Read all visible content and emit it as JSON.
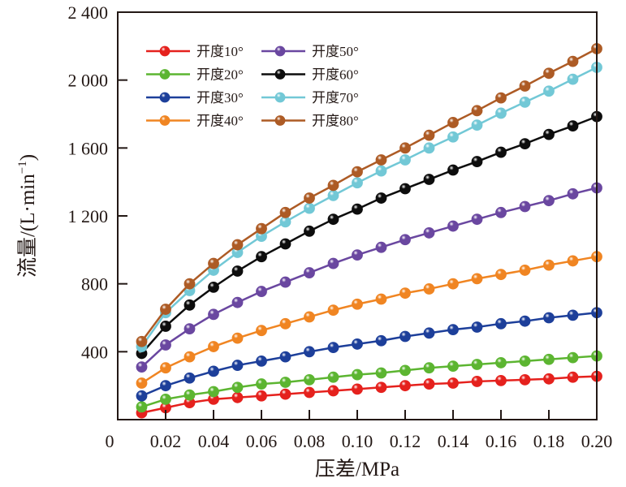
{
  "chart_data": {
    "type": "line",
    "title": "",
    "xlabel": "压差/MPa",
    "ylabel": "流量/(L·min⁻¹)",
    "ylabel_parts": {
      "main": "流量/(L·min",
      "sup": "−1",
      "close": ")"
    },
    "xlim": [
      0,
      0.2
    ],
    "ylim": [
      0,
      2400
    ],
    "x_ticks": [
      0.02,
      0.04,
      0.06,
      0.08,
      0.1,
      0.12,
      0.14,
      0.16,
      0.18,
      0.2
    ],
    "x_tick_labels": [
      "0.02",
      "0.04",
      "0.06",
      "0.08",
      "0.10",
      "0.12",
      "0.14",
      "0.16",
      "0.18",
      "0.20"
    ],
    "y_ticks": [
      400,
      800,
      1200,
      1600,
      2000,
      2400
    ],
    "y_tick_labels": [
      "400",
      "800",
      "1 200",
      "1 600",
      "2 000",
      "2 400"
    ],
    "origin_label": "0",
    "grid": false,
    "legend_position": "top-left",
    "x": [
      0.01,
      0.02,
      0.03,
      0.04,
      0.05,
      0.06,
      0.07,
      0.08,
      0.09,
      0.1,
      0.11,
      0.12,
      0.13,
      0.14,
      0.15,
      0.16,
      0.17,
      0.18,
      0.19,
      0.2
    ],
    "series": [
      {
        "name": "开度10°",
        "color": "#e5211d",
        "values": [
          40,
          70,
          100,
          120,
          130,
          140,
          150,
          160,
          170,
          180,
          190,
          200,
          210,
          215,
          225,
          230,
          235,
          240,
          250,
          255
        ]
      },
      {
        "name": "开度20°",
        "color": "#5cb531",
        "values": [
          75,
          120,
          145,
          165,
          190,
          210,
          220,
          235,
          250,
          265,
          275,
          290,
          305,
          315,
          325,
          335,
          345,
          355,
          365,
          375
        ]
      },
      {
        "name": "开度30°",
        "color": "#1d3f9a",
        "values": [
          140,
          200,
          245,
          285,
          320,
          345,
          370,
          400,
          425,
          445,
          465,
          490,
          510,
          530,
          545,
          565,
          580,
          600,
          615,
          630
        ]
      },
      {
        "name": "开度40°",
        "color": "#f08522",
        "values": [
          215,
          305,
          370,
          430,
          480,
          525,
          565,
          605,
          645,
          680,
          710,
          745,
          770,
          800,
          830,
          855,
          880,
          910,
          935,
          960
        ]
      },
      {
        "name": "开度50°",
        "color": "#6a47a0",
        "values": [
          310,
          440,
          535,
          620,
          690,
          755,
          810,
          865,
          920,
          970,
          1015,
          1060,
          1100,
          1140,
          1180,
          1220,
          1255,
          1290,
          1330,
          1365
        ]
      },
      {
        "name": "开度60°",
        "color": "#0d0d0d",
        "values": [
          390,
          550,
          675,
          780,
          875,
          960,
          1035,
          1110,
          1180,
          1240,
          1305,
          1360,
          1415,
          1470,
          1520,
          1575,
          1625,
          1680,
          1730,
          1785
        ]
      },
      {
        "name": "开度70°",
        "color": "#72c8d6",
        "values": [
          430,
          630,
          760,
          880,
          985,
          1080,
          1165,
          1245,
          1320,
          1395,
          1465,
          1530,
          1600,
          1665,
          1735,
          1805,
          1870,
          1935,
          2005,
          2075
        ]
      },
      {
        "name": "开度80°",
        "color": "#ad5b25",
        "values": [
          460,
          650,
          800,
          920,
          1030,
          1125,
          1220,
          1305,
          1380,
          1460,
          1530,
          1600,
          1675,
          1750,
          1820,
          1895,
          1965,
          2040,
          2110,
          2185
        ]
      }
    ]
  }
}
